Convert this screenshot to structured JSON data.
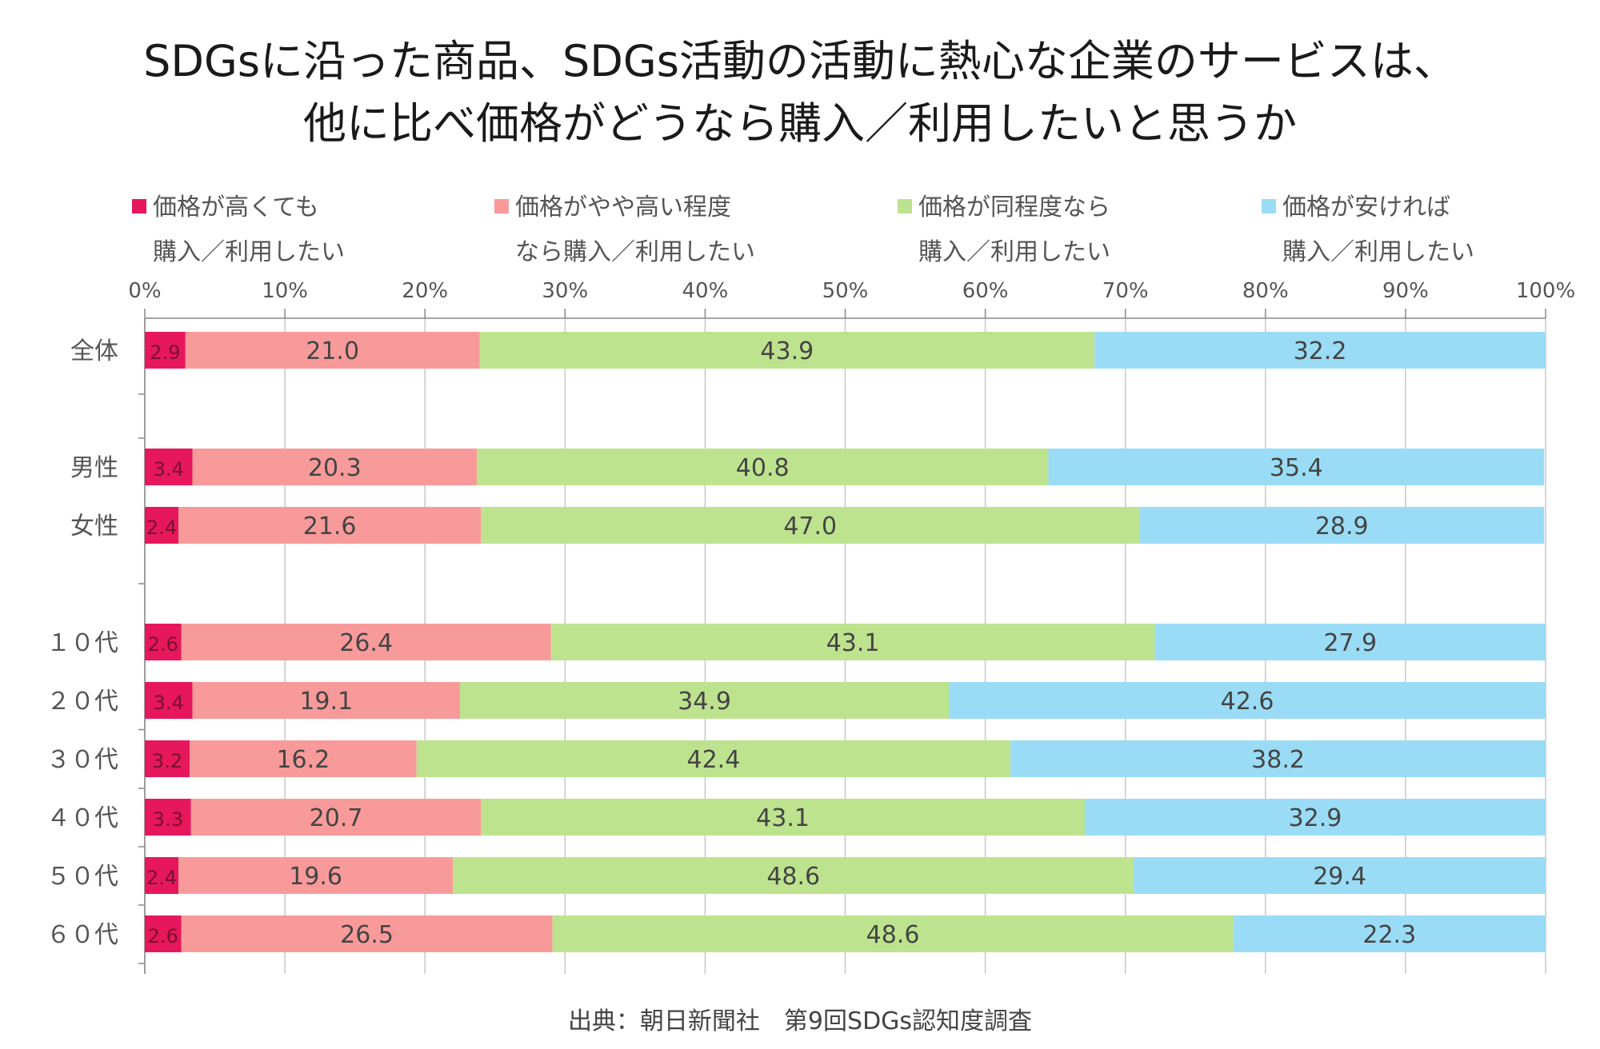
{
  "title_line1": "SDGsに沿った商品、SDGs活動の活動に熱心な企業のサービスは、",
  "title_line2": "他に比べ価格がどうなら購入／利用したいと思うか",
  "source": "出典：朝日新聞社　第9回SDGs認知度調査",
  "legend": [
    {
      "line1": "価格が高くても",
      "line2": "購入／利用したい",
      "color": "#E6175C"
    },
    {
      "line1": "価格がやや高い程度",
      "line2": "なら購入／利用したい",
      "color": "#F99A9A"
    },
    {
      "line1": "価格が同程度なら",
      "line2": "購入／利用したい",
      "color": "#BEE38F"
    },
    {
      "line1": "価格が安ければ",
      "line2": "購入／利用したい",
      "color": "#9ADCF5"
    }
  ],
  "chart_data": {
    "type": "bar",
    "orientation": "horizontal",
    "stacked": "100%",
    "xlim": [
      0,
      100
    ],
    "x_ticks": [
      "0%",
      "10%",
      "20%",
      "30%",
      "40%",
      "50%",
      "60%",
      "70%",
      "80%",
      "90%",
      "100%"
    ],
    "categories": [
      "全体",
      "男性",
      "女性",
      "１０代",
      "２０代",
      "３０代",
      "４０代",
      "５０代",
      "６０代"
    ],
    "series": [
      {
        "name": "価格が高くても購入／利用したい",
        "color": "#E6175C",
        "values": [
          2.9,
          3.4,
          2.4,
          2.6,
          3.4,
          3.2,
          3.3,
          2.4,
          2.6
        ]
      },
      {
        "name": "価格がやや高い程度なら購入／利用したい",
        "color": "#F99A9A",
        "values": [
          21.0,
          20.3,
          21.6,
          26.4,
          19.1,
          16.2,
          20.7,
          19.6,
          26.5
        ]
      },
      {
        "name": "価格が同程度なら購入／利用したい",
        "color": "#BEE38F",
        "values": [
          43.9,
          40.8,
          47.0,
          43.1,
          34.9,
          42.4,
          43.1,
          48.6,
          48.6
        ]
      },
      {
        "name": "価格が安ければ購入／利用したい",
        "color": "#9ADCF5",
        "values": [
          32.2,
          35.4,
          28.9,
          27.9,
          42.6,
          38.2,
          32.9,
          29.4,
          22.3
        ]
      }
    ],
    "grid": true,
    "legend_position": "top"
  }
}
